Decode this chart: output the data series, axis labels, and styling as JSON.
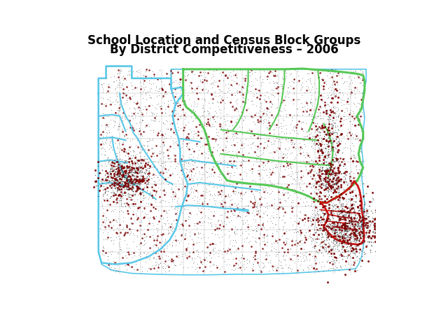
{
  "title_line1": "School Location and Census Block Groups",
  "title_line2": "By District Competitiveness – 2006",
  "title_fontsize": 12,
  "title_fontweight": "bold",
  "background_color": "#ffffff",
  "fig_width": 6.4,
  "fig_height": 4.8,
  "dpi": 100,
  "cyan_color": "#5BC8E8",
  "green_color": "#55C855",
  "red_border_color": "#CC1111",
  "gray_border_color": "#999999",
  "pa_fill_color": "#FFFFFF",
  "pa_border_color": "#5BC8E8",
  "dot_color_small": "#222222",
  "dot_color_large": "#7B0000",
  "seed": 42,
  "n_small_dots": 3500,
  "n_large_dots": 700,
  "cluster_spread": 0.03
}
